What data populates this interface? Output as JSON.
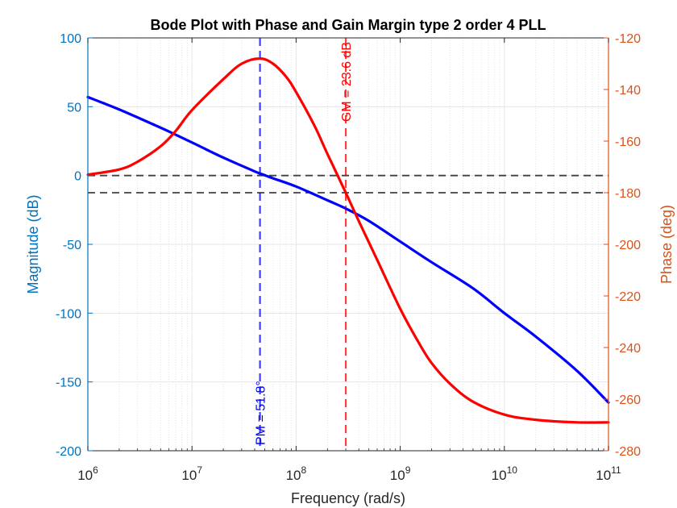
{
  "chart_data": {
    "type": "line",
    "title": "Bode Plot with Phase and Gain Margin type 2 order 4 PLL",
    "xlabel": "Frequency (rad/s)",
    "ylabel_left": "Magnitude (dB)",
    "ylabel_right": "Phase (deg)",
    "xscale": "log",
    "xlim": [
      1000000,
      100000000000
    ],
    "ylim_left": [
      -200,
      100
    ],
    "ylim_right": [
      -280,
      -120
    ],
    "x_ticks": [
      {
        "base": "10",
        "exp": "6",
        "value": 1000000
      },
      {
        "base": "10",
        "exp": "7",
        "value": 10000000
      },
      {
        "base": "10",
        "exp": "8",
        "value": 100000000
      },
      {
        "base": "10",
        "exp": "9",
        "value": 1000000000
      },
      {
        "base": "10",
        "exp": "10",
        "value": 10000000000
      },
      {
        "base": "10",
        "exp": "11",
        "value": 100000000000
      }
    ],
    "y_ticks_left": [
      100,
      50,
      0,
      -50,
      -100,
      -150,
      -200
    ],
    "y_ticks_right": [
      -120,
      -140,
      -160,
      -180,
      -200,
      -220,
      -240,
      -260,
      -280
    ],
    "grid": true,
    "colors": {
      "magnitude": "#0000ff",
      "phase": "#ff0000",
      "left_axis": "#0072bd",
      "right_axis": "#d95319",
      "reference_lines": "#404040"
    },
    "series": [
      {
        "axis": "left",
        "x": [
          1000000,
          2000000,
          4000000,
          6000000,
          10000000,
          20000000,
          40000000,
          47000000,
          60000000,
          100000000,
          200000000,
          300000000,
          500000000,
          1000000000,
          2000000000,
          5000000000,
          10000000000,
          20000000000,
          50000000000,
          100000000000
        ],
        "values": [
          57,
          48,
          38,
          32,
          24,
          13,
          3,
          1,
          -2,
          -8,
          -18,
          -24,
          -33,
          -48,
          -63,
          -82,
          -100,
          -117,
          -142,
          -165
        ]
      },
      {
        "axis": "right",
        "x": [
          1000000,
          2000000,
          3000000,
          5000000,
          7000000,
          10000000,
          20000000,
          30000000,
          45000000,
          60000000,
          80000000,
          100000000,
          150000000,
          200000000,
          300000000,
          400000000,
          600000000,
          1000000000,
          1500000000,
          2000000000,
          3000000000,
          5000000000,
          10000000000,
          20000000000,
          50000000000,
          100000000000
        ],
        "values": [
          -173,
          -171,
          -168,
          -162,
          -156,
          -148,
          -136,
          -130,
          -128,
          -130,
          -135,
          -141,
          -154,
          -165,
          -180,
          -191,
          -206,
          -225,
          -238,
          -246,
          -254,
          -261,
          -266,
          -268,
          -269,
          -269
        ]
      }
    ],
    "reference_lines": {
      "magnitude_zero": 0,
      "phase_minus_180": -180
    },
    "annotations": {
      "pm_label": "PM = 51.8°",
      "pm_frequency": 45000000,
      "gm_label": "GM = 23.6 dB",
      "gm_frequency": 300000000
    }
  }
}
